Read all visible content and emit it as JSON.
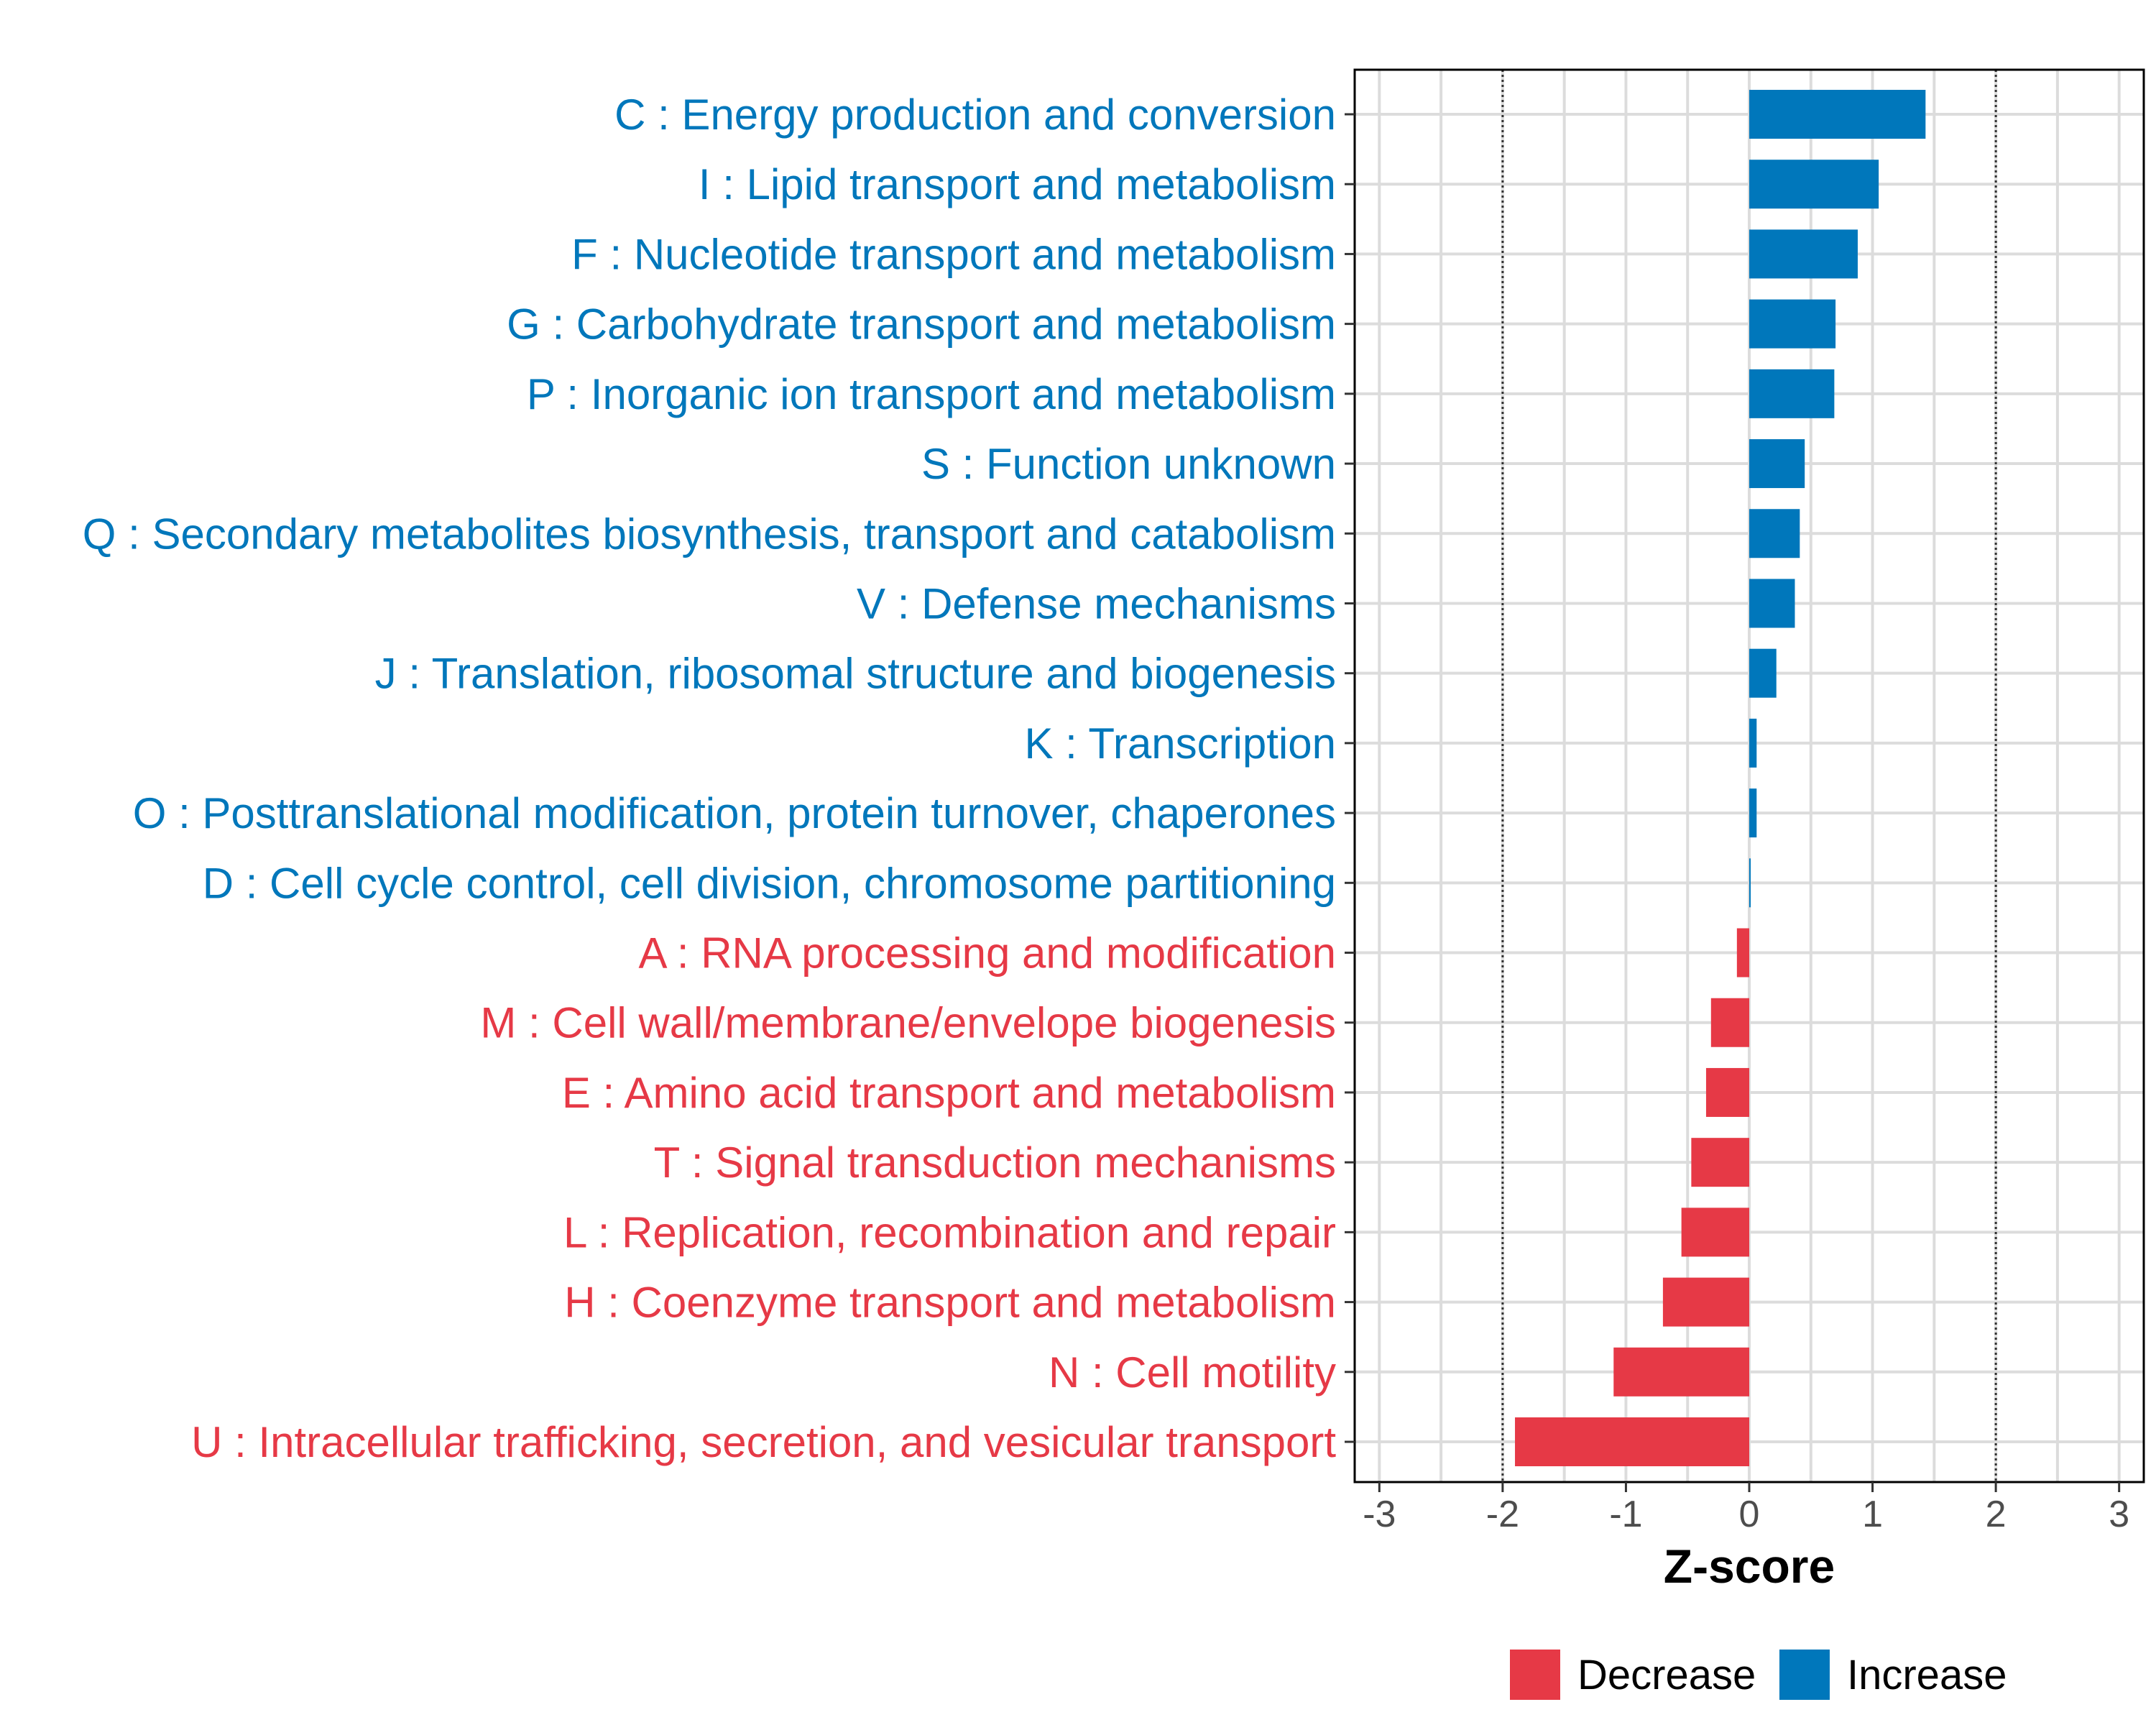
{
  "chart_data": {
    "type": "bar",
    "orientation": "horizontal",
    "xlabel": "Z-score",
    "xlim": [
      -3.2,
      3.2
    ],
    "xticks": [
      -3,
      -2,
      -1,
      0,
      1,
      2,
      3
    ],
    "xtick_labels": [
      "-3",
      "-2",
      "-1",
      "0",
      "1",
      "2",
      "3"
    ],
    "reference_lines": [
      -2,
      2
    ],
    "grid": true,
    "categories": [
      "C : Energy production and conversion",
      "I : Lipid transport and metabolism",
      "F : Nucleotide transport and metabolism",
      "G : Carbohydrate transport and metabolism",
      "P : Inorganic ion transport and metabolism",
      "S : Function unknown",
      "Q : Secondary metabolites biosynthesis, transport and catabolism",
      "V : Defense mechanisms",
      "J : Translation, ribosomal structure and biogenesis",
      "K : Transcription",
      "O : Posttranslational modification, protein turnover, chaperones",
      "D : Cell cycle control, cell division, chromosome partitioning",
      "A : RNA processing and modification",
      "M : Cell wall/membrane/envelope biogenesis",
      "E : Amino acid transport and metabolism",
      "T : Signal transduction mechanisms",
      "L : Replication, recombination and repair",
      "H : Coenzyme transport and metabolism",
      "N : Cell motility",
      "U : Intracellular trafficking, secretion, and vesicular transport"
    ],
    "values": [
      1.43,
      1.05,
      0.88,
      0.7,
      0.69,
      0.45,
      0.41,
      0.37,
      0.22,
      0.06,
      0.06,
      0.01,
      -0.1,
      -0.31,
      -0.35,
      -0.47,
      -0.55,
      -0.7,
      -1.1,
      -1.9
    ],
    "series": [
      {
        "name": "Decrease",
        "color": "#e63946"
      },
      {
        "name": "Increase",
        "color": "#0077bb"
      }
    ],
    "legend_position": "bottom"
  }
}
